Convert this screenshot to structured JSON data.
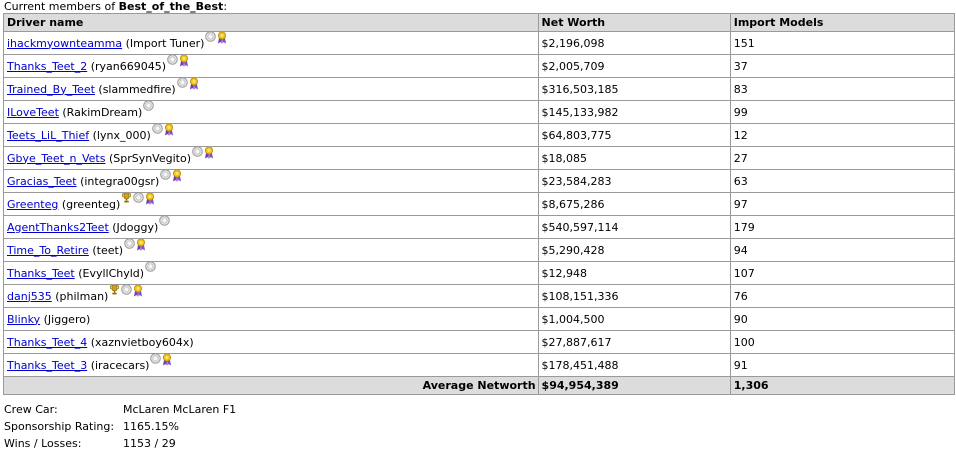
{
  "caption": {
    "prefix": "Current members of ",
    "team_name": "Best_of_the_Best",
    "suffix": ":"
  },
  "table": {
    "headers": [
      "Driver name",
      "Net Worth",
      "Import Models"
    ],
    "rows": [
      {
        "driver": "ihackmyownteamma",
        "owner": "(Import Tuner)",
        "badges": [
          "silver-medal-icon",
          "ribbon-icon"
        ],
        "net_worth": "$2,196,098",
        "imports": "151"
      },
      {
        "driver": "Thanks_Teet_2",
        "owner": "(ryan669045)",
        "badges": [
          "silver-medal-icon",
          "ribbon-icon"
        ],
        "net_worth": "$2,005,709",
        "imports": "37"
      },
      {
        "driver": "Trained_By_Teet",
        "owner": "(slammedfire)",
        "badges": [
          "silver-medal-icon",
          "ribbon-icon"
        ],
        "net_worth": "$316,503,185",
        "imports": "83"
      },
      {
        "driver": "ILoveTeet",
        "owner": "(RakimDream)",
        "badges": [
          "silver-medal-icon"
        ],
        "net_worth": "$145,133,982",
        "imports": "99"
      },
      {
        "driver": "Teets_LiL_Thief",
        "owner": "(lynx_000)",
        "badges": [
          "silver-medal-icon",
          "ribbon-icon"
        ],
        "net_worth": "$64,803,775",
        "imports": "12"
      },
      {
        "driver": "Gbye_Teet_n_Vets",
        "owner": "(SprSynVegito)",
        "badges": [
          "silver-medal-icon",
          "ribbon-icon"
        ],
        "net_worth": "$18,085",
        "imports": "27"
      },
      {
        "driver": "Gracias_Teet",
        "owner": "(integra00gsr)",
        "badges": [
          "silver-medal-icon",
          "ribbon-icon"
        ],
        "net_worth": "$23,584,283",
        "imports": "63"
      },
      {
        "driver": "Greenteg",
        "owner": "(greenteg)",
        "badges": [
          "trophy-icon",
          "silver-medal-icon",
          "ribbon-icon"
        ],
        "net_worth": "$8,675,286",
        "imports": "97"
      },
      {
        "driver": "AgentThanks2Teet",
        "owner": "(Jdoggy)",
        "badges": [
          "silver-medal-icon"
        ],
        "net_worth": "$540,597,114",
        "imports": "179"
      },
      {
        "driver": "Time_To_Retire",
        "owner": "(teet)",
        "badges": [
          "silver-medal-icon",
          "ribbon-icon"
        ],
        "net_worth": "$5,290,428",
        "imports": "94"
      },
      {
        "driver": "Thanks_Teet",
        "owner": "(EvyllChyld)",
        "badges": [
          "silver-medal-icon"
        ],
        "net_worth": "$12,948",
        "imports": "107"
      },
      {
        "driver": "danj535",
        "owner": "(philman)",
        "badges": [
          "trophy-icon",
          "silver-medal-icon",
          "ribbon-icon"
        ],
        "net_worth": "$108,151,336",
        "imports": "76"
      },
      {
        "driver": "Blinky",
        "owner": "(Jiggero)",
        "badges": [],
        "net_worth": "$1,004,500",
        "imports": "90"
      },
      {
        "driver": "Thanks_Teet_4",
        "owner": "(xaznvietboy604x)",
        "badges": [],
        "net_worth": "$27,887,617",
        "imports": "100"
      },
      {
        "driver": "Thanks_Teet_3",
        "owner": "(iracecars)",
        "badges": [
          "silver-medal-icon",
          "ribbon-icon"
        ],
        "net_worth": "$178,451,488",
        "imports": "91"
      }
    ],
    "footer": {
      "label": "Average Networth",
      "net_worth": "$94,954,389",
      "imports": "1,306"
    }
  },
  "info": {
    "crew_car_label": "Crew Car:",
    "crew_car_value": "McLaren McLaren F1",
    "sponsorship_label": "Sponsorship Rating:",
    "sponsorship_value": "1165.15%",
    "record_label": "Wins / Losses:",
    "record_value": "1153 / 29"
  },
  "colors": {
    "link": "#0000cc",
    "header_bg": "#dcdcdc",
    "border": "#9a9a9a"
  }
}
